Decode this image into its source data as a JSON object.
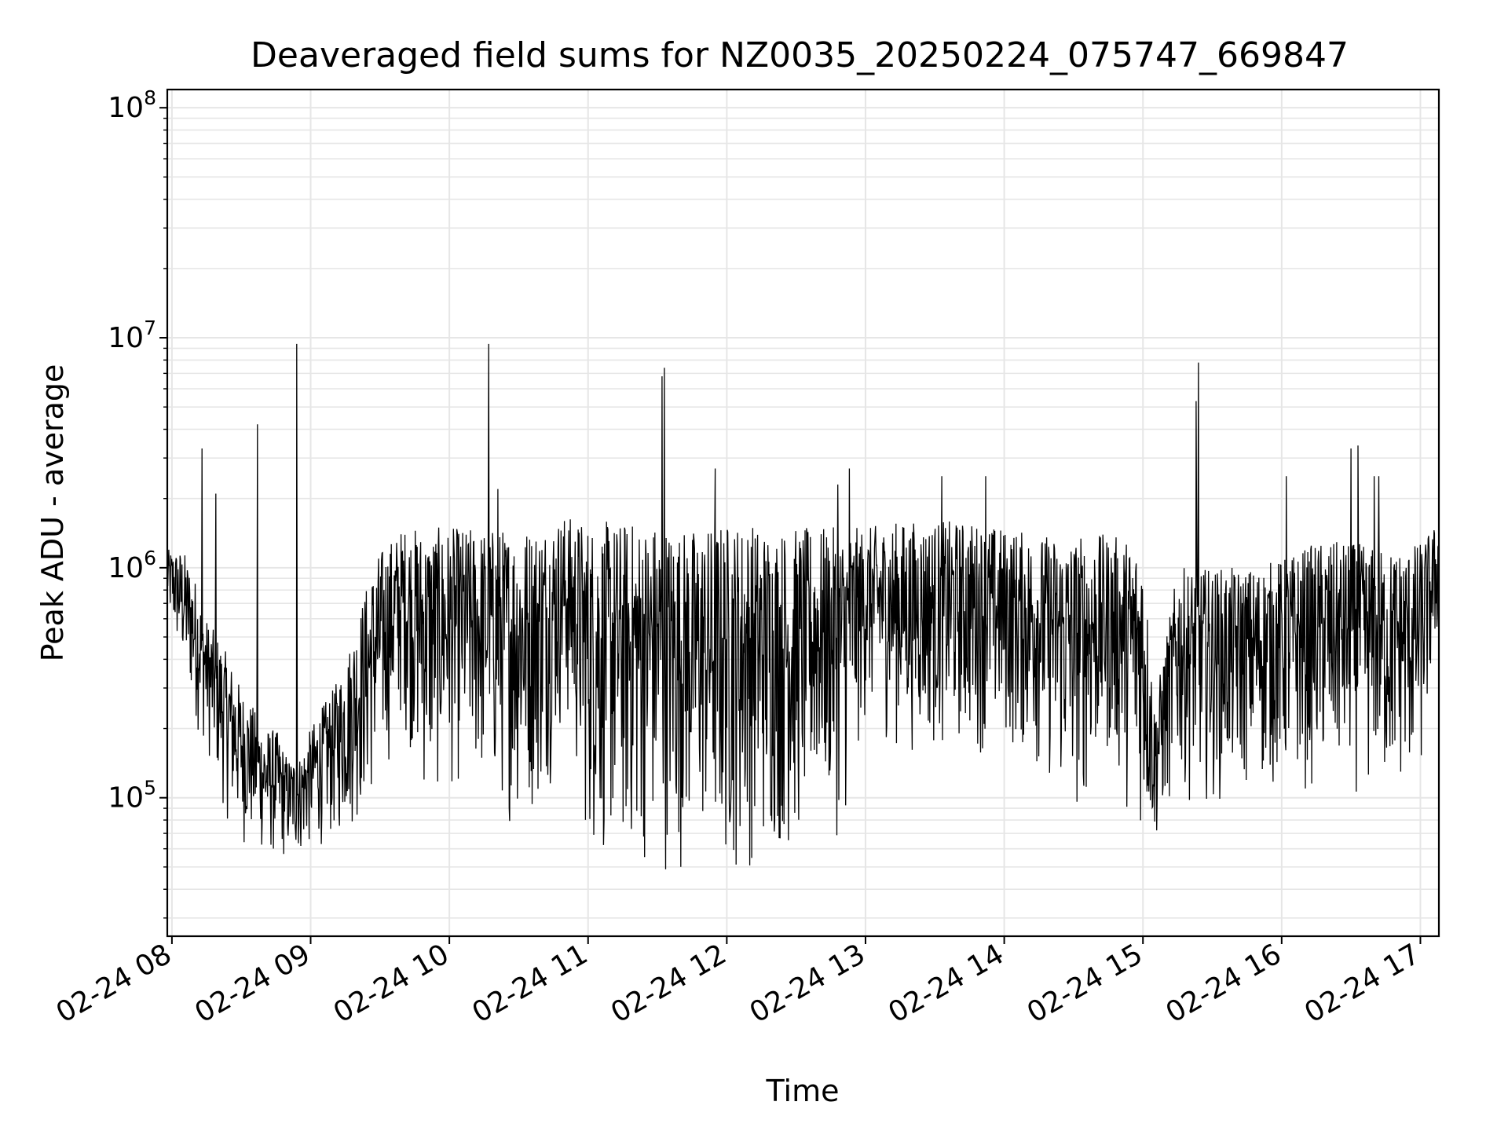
{
  "chart_data": {
    "type": "line",
    "title": "Deaveraged field sums for NZ0035_20250224_075747_669847",
    "xlabel": "Time",
    "ylabel": "Peak ADU - average",
    "yscale": "log",
    "ylim": [
      25000,
      120000000
    ],
    "xlim": [
      "2025-02-24 07:58",
      "2025-02-24 17:08"
    ],
    "grid": true,
    "line_color": "#000000",
    "x_tick_labels": [
      "02-24 08",
      "02-24 09",
      "02-24 10",
      "02-24 11",
      "02-24 12",
      "02-24 13",
      "02-24 14",
      "02-24 15",
      "02-24 16",
      "02-24 17"
    ],
    "y_tick_labels": [
      {
        "base": "10",
        "exp": "5",
        "value": 100000
      },
      {
        "base": "10",
        "exp": "6",
        "value": 1000000
      },
      {
        "base": "10",
        "exp": "7",
        "value": 10000000
      },
      {
        "base": "10",
        "exp": "8",
        "value": 100000000
      }
    ],
    "series": [
      {
        "x": [
          "2025-02-24 07:58",
          "2025-02-24 08:05",
          "2025-02-24 08:10",
          "2025-02-24 08:15",
          "2025-02-24 08:20",
          "2025-02-24 08:25",
          "2025-02-24 08:30",
          "2025-02-24 08:35",
          "2025-02-24 08:40",
          "2025-02-24 08:45",
          "2025-02-24 08:50",
          "2025-02-24 08:55",
          "2025-02-24 09:00",
          "2025-02-24 09:05",
          "2025-02-24 09:10",
          "2025-02-24 09:15",
          "2025-02-24 09:20",
          "2025-02-24 09:25",
          "2025-02-24 09:30",
          "2025-02-24 09:40",
          "2025-02-24 09:50",
          "2025-02-24 10:00",
          "2025-02-24 10:10",
          "2025-02-24 10:20",
          "2025-02-24 10:30",
          "2025-02-24 10:40",
          "2025-02-24 10:50",
          "2025-02-24 11:00",
          "2025-02-24 11:10",
          "2025-02-24 11:20",
          "2025-02-24 11:30",
          "2025-02-24 11:40",
          "2025-02-24 11:50",
          "2025-02-24 12:00",
          "2025-02-24 12:10",
          "2025-02-24 12:20",
          "2025-02-24 12:30",
          "2025-02-24 12:40",
          "2025-02-24 12:50",
          "2025-02-24 13:00",
          "2025-02-24 13:15",
          "2025-02-24 13:30",
          "2025-02-24 13:45",
          "2025-02-24 14:00",
          "2025-02-24 14:15",
          "2025-02-24 14:30",
          "2025-02-24 14:45",
          "2025-02-24 15:00",
          "2025-02-24 15:05",
          "2025-02-24 15:15",
          "2025-02-24 15:30",
          "2025-02-24 15:45",
          "2025-02-24 16:00",
          "2025-02-24 16:15",
          "2025-02-24 16:30",
          "2025-02-24 16:45",
          "2025-02-24 17:00",
          "2025-02-24 17:08"
        ],
        "low": [
          600000,
          300000,
          200000,
          150000,
          100000,
          70000,
          60000,
          55000,
          52000,
          50000,
          50000,
          52000,
          55000,
          60000,
          60000,
          65000,
          70000,
          80000,
          100000,
          200000,
          80000,
          100000,
          100000,
          80000,
          70000,
          80000,
          200000,
          50000,
          45000,
          45000,
          45000,
          45000,
          50000,
          40000,
          45000,
          50000,
          50000,
          80000,
          60000,
          200000,
          150000,
          150000,
          150000,
          150000,
          120000,
          70000,
          130000,
          60000,
          55000,
          100000,
          90000,
          100000,
          100000,
          100000,
          100000,
          90000,
          100000,
          500000
        ],
        "high": [
          1200000,
          1200000,
          900000,
          600000,
          500000,
          400000,
          300000,
          250000,
          200000,
          200000,
          150000,
          150000,
          200000,
          250000,
          300000,
          400000,
          600000,
          900000,
          1200000,
          1500000,
          1500000,
          1500000,
          1500000,
          1500000,
          1500000,
          1600000,
          1700000,
          1600000,
          1600000,
          1600000,
          1600000,
          1500000,
          1500000,
          1600000,
          1600000,
          1500000,
          1500000,
          1500000,
          1500000,
          1500000,
          1600000,
          1600000,
          1600000,
          1500000,
          1400000,
          1400000,
          1400000,
          1300000,
          250000,
          1000000,
          1000000,
          1000000,
          1100000,
          1300000,
          1300000,
          1200000,
          1300000,
          1600000
        ]
      }
    ],
    "spikes": [
      {
        "x": "2025-02-24 08:13",
        "y": 3300000
      },
      {
        "x": "2025-02-24 08:19",
        "y": 2100000
      },
      {
        "x": "2025-02-24 08:37",
        "y": 4200000
      },
      {
        "x": "2025-02-24 08:54",
        "y": 9400000
      },
      {
        "x": "2025-02-24 10:17",
        "y": 9400000
      },
      {
        "x": "2025-02-24 10:21",
        "y": 2200000
      },
      {
        "x": "2025-02-24 11:32",
        "y": 6800000
      },
      {
        "x": "2025-02-24 11:33",
        "y": 7400000
      },
      {
        "x": "2025-02-24 11:55",
        "y": 2700000
      },
      {
        "x": "2025-02-24 12:48",
        "y": 2300000
      },
      {
        "x": "2025-02-24 12:53",
        "y": 2700000
      },
      {
        "x": "2025-02-24 13:33",
        "y": 2500000
      },
      {
        "x": "2025-02-24 13:52",
        "y": 2500000
      },
      {
        "x": "2025-02-24 15:23",
        "y": 5300000
      },
      {
        "x": "2025-02-24 15:24",
        "y": 7800000
      },
      {
        "x": "2025-02-24 16:02",
        "y": 2500000
      },
      {
        "x": "2025-02-24 16:30",
        "y": 3300000
      },
      {
        "x": "2025-02-24 16:33",
        "y": 3400000
      },
      {
        "x": "2025-02-24 16:40",
        "y": 2500000
      },
      {
        "x": "2025-02-24 16:42",
        "y": 2500000
      }
    ]
  }
}
